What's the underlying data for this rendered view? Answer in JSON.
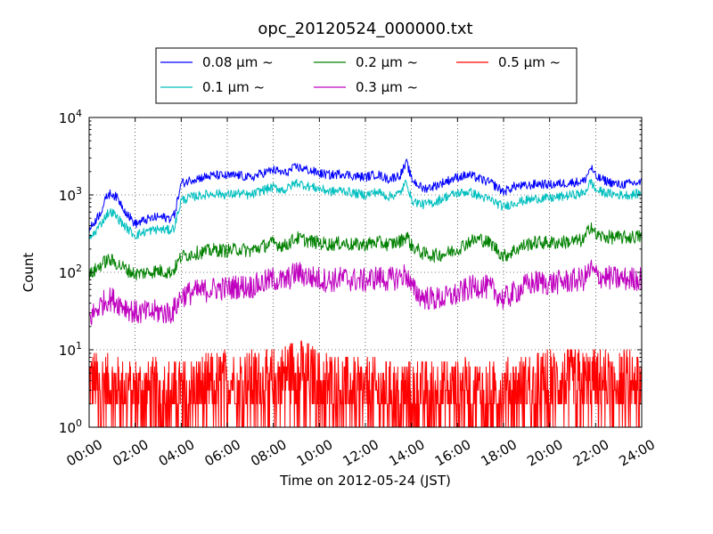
{
  "chart_data": {
    "type": "line",
    "title": "opc_20120524_000000.txt",
    "xlabel": "Time on 2012-05-24 (JST)",
    "ylabel": "Count",
    "x_unit": "hour",
    "xlim": [
      0,
      24
    ],
    "ylim": [
      1,
      10000
    ],
    "yscale": "log",
    "grid": true,
    "legend_position": "top-center",
    "x_ticks": [
      0,
      2,
      4,
      6,
      8,
      10,
      12,
      14,
      16,
      18,
      20,
      22,
      24
    ],
    "x_tick_labels": [
      "00:00",
      "02:00",
      "04:00",
      "06:00",
      "08:00",
      "10:00",
      "12:00",
      "14:00",
      "16:00",
      "18:00",
      "20:00",
      "22:00",
      "24:00"
    ],
    "y_ticks": [
      1,
      10,
      100,
      1000,
      10000
    ],
    "y_tick_labels": [
      {
        "base": "10",
        "exp": "0"
      },
      {
        "base": "10",
        "exp": "1"
      },
      {
        "base": "10",
        "exp": "2"
      },
      {
        "base": "10",
        "exp": "3"
      },
      {
        "base": "10",
        "exp": "4"
      }
    ],
    "series": [
      {
        "name": "0.08 μm ~",
        "color": "#0000ff",
        "x": [
          0,
          0.5,
          0.8,
          1,
          1.3,
          1.6,
          2,
          2.5,
          3,
          3.5,
          3.7,
          4,
          4.5,
          5,
          5.5,
          6,
          6.5,
          7,
          7.5,
          8,
          8.5,
          9,
          9.5,
          10,
          10.5,
          11,
          11.5,
          12,
          12.5,
          13,
          13.5,
          13.8,
          14,
          14.5,
          15,
          15.5,
          16,
          16.5,
          17,
          17.5,
          18,
          18.5,
          19,
          19.5,
          20,
          20.5,
          21,
          21.5,
          21.8,
          22,
          22.5,
          23,
          23.5,
          24
        ],
        "y": [
          350,
          600,
          1000,
          1050,
          850,
          600,
          420,
          480,
          520,
          500,
          550,
          1400,
          1600,
          1700,
          1800,
          1750,
          1800,
          1650,
          1900,
          2100,
          1900,
          2300,
          2100,
          1900,
          1800,
          1900,
          1750,
          1700,
          1850,
          1600,
          1800,
          2600,
          1600,
          1200,
          1300,
          1500,
          1700,
          1800,
          1600,
          1400,
          1100,
          1300,
          1300,
          1400,
          1350,
          1400,
          1450,
          1500,
          2300,
          1700,
          1500,
          1350,
          1400,
          1450
        ]
      },
      {
        "name": "0.1 μm ~",
        "color": "#00bfbf",
        "x": [
          0,
          0.5,
          0.8,
          1,
          1.3,
          1.6,
          2,
          2.5,
          3,
          3.5,
          3.7,
          4,
          4.5,
          5,
          5.5,
          6,
          6.5,
          7,
          7.5,
          8,
          8.5,
          9,
          9.5,
          10,
          10.5,
          11,
          11.5,
          12,
          12.5,
          13,
          13.5,
          13.8,
          14,
          14.5,
          15,
          15.5,
          16,
          16.5,
          17,
          17.5,
          18,
          18.5,
          19,
          19.5,
          20,
          20.5,
          21,
          21.5,
          21.8,
          22,
          22.5,
          23,
          23.5,
          24
        ],
        "y": [
          260,
          420,
          580,
          600,
          480,
          380,
          300,
          340,
          360,
          350,
          380,
          850,
          950,
          1000,
          1050,
          1000,
          1050,
          980,
          1150,
          1250,
          1150,
          1450,
          1300,
          1200,
          1100,
          1150,
          1050,
          1000,
          1100,
          950,
          1050,
          1500,
          850,
          750,
          800,
          950,
          1050,
          1100,
          950,
          850,
          700,
          800,
          850,
          900,
          900,
          950,
          1000,
          1050,
          1500,
          1150,
          1050,
          1000,
          1000,
          1050
        ]
      },
      {
        "name": "0.2 μm ~",
        "color": "#008000",
        "x": [
          0,
          0.5,
          0.8,
          1,
          1.3,
          1.6,
          2,
          2.5,
          3,
          3.5,
          3.7,
          4,
          4.5,
          5,
          5.5,
          6,
          6.5,
          7,
          7.5,
          8,
          8.5,
          9,
          9.5,
          10,
          10.5,
          11,
          11.5,
          12,
          12.5,
          13,
          13.5,
          13.8,
          14,
          14.5,
          15,
          15.5,
          16,
          16.5,
          17,
          17.5,
          18,
          18.5,
          19,
          19.5,
          20,
          20.5,
          21,
          21.5,
          21.8,
          22,
          22.5,
          23,
          23.5,
          24
        ],
        "y": [
          90,
          125,
          145,
          140,
          125,
          110,
          95,
          100,
          105,
          100,
          110,
          160,
          175,
          185,
          195,
          190,
          200,
          190,
          215,
          240,
          220,
          280,
          255,
          240,
          230,
          240,
          225,
          230,
          245,
          230,
          250,
          300,
          220,
          175,
          165,
          175,
          200,
          250,
          270,
          230,
          160,
          195,
          230,
          245,
          240,
          245,
          250,
          260,
          420,
          300,
          285,
          280,
          285,
          290
        ]
      },
      {
        "name": "0.3 μm ~",
        "color": "#bf00bf",
        "x": [
          0,
          0.5,
          0.8,
          1,
          1.3,
          1.6,
          2,
          2.5,
          3,
          3.5,
          3.7,
          4,
          4.5,
          5,
          5.5,
          6,
          6.5,
          7,
          7.5,
          8,
          8.5,
          9,
          9.5,
          10,
          10.5,
          11,
          11.5,
          12,
          12.5,
          13,
          13.5,
          13.8,
          14,
          14.5,
          15,
          15.5,
          16,
          16.5,
          17,
          17.5,
          18,
          18.5,
          19,
          19.5,
          20,
          20.5,
          21,
          21.5,
          21.8,
          22,
          22.5,
          23,
          23.5,
          24
        ],
        "y": [
          25,
          38,
          45,
          45,
          40,
          36,
          30,
          30,
          31,
          30,
          33,
          50,
          55,
          58,
          62,
          62,
          66,
          65,
          72,
          82,
          76,
          100,
          88,
          82,
          78,
          84,
          80,
          78,
          86,
          80,
          88,
          95,
          62,
          48,
          45,
          47,
          52,
          62,
          68,
          60,
          45,
          55,
          68,
          75,
          72,
          75,
          78,
          82,
          110,
          92,
          86,
          82,
          82,
          84
        ]
      },
      {
        "name": "0.5 μm ~",
        "color": "#ff0000",
        "x": [
          0,
          2,
          4,
          6,
          8,
          9,
          10,
          12,
          14,
          16,
          18,
          20,
          22,
          24
        ],
        "y": [
          4,
          3,
          3,
          4,
          4,
          6,
          4,
          3,
          3,
          3,
          3,
          4,
          4,
          4
        ],
        "y_range_min": 1,
        "y_range_max": 14
      }
    ]
  }
}
